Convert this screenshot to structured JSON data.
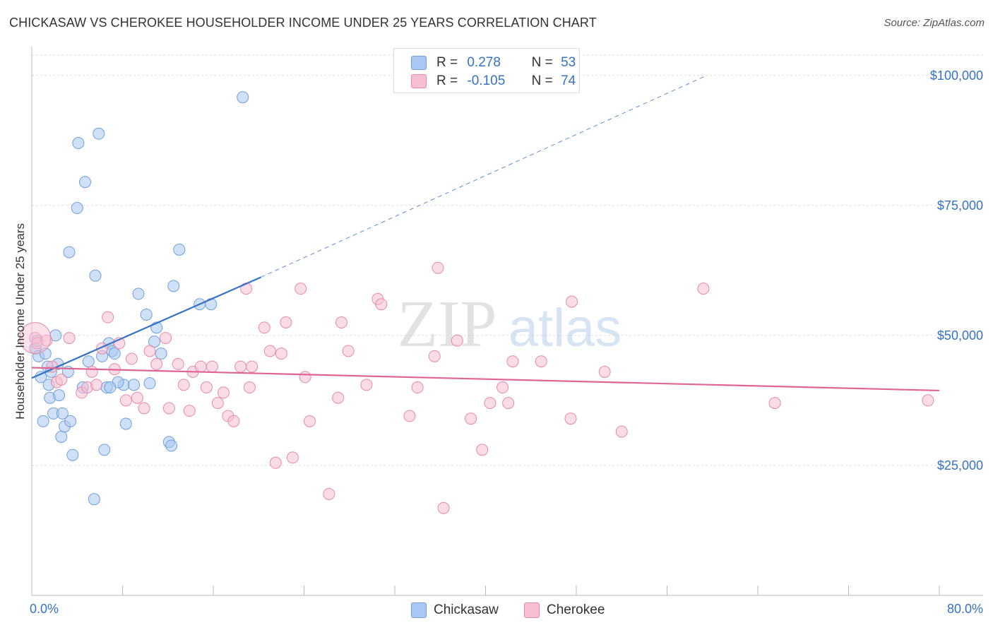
{
  "title": "CHICKASAW VS CHEROKEE HOUSEHOLDER INCOME UNDER 25 YEARS CORRELATION CHART",
  "source": "Source: ZipAtlas.com",
  "watermark": {
    "zip": "ZIP",
    "atlas": "atlas"
  },
  "legend": {
    "rows": [
      {
        "r_label": "R =",
        "r_value": "0.278",
        "n_label": "N =",
        "n_value": "53",
        "color": "#a9c8f0",
        "border": "#6f9fdc"
      },
      {
        "r_label": "R =",
        "r_value": "-0.105",
        "n_label": "N =",
        "n_value": "74",
        "color": "#f6bfd2",
        "border": "#e58aab"
      }
    ]
  },
  "bottom_legend": [
    {
      "label": "Chickasaw",
      "color": "#a9c8f0",
      "border": "#6f9fdc"
    },
    {
      "label": "Cherokee",
      "color": "#f6bfd2",
      "border": "#e58aab"
    }
  ],
  "x_axis": {
    "min_label": "0.0%",
    "max_label": "80.0%"
  },
  "chart_data": {
    "type": "scatter",
    "title": "CHICKASAW VS CHEROKEE HOUSEHOLDER INCOME UNDER 25 YEARS CORRELATION CHART",
    "xlabel": "",
    "ylabel": "Householder Income Under 25 years",
    "xlim": [
      0,
      80
    ],
    "ylim": [
      0,
      105000
    ],
    "y_ticks": [
      {
        "value": 25000,
        "label": "$25,000"
      },
      {
        "value": 50000,
        "label": "$50,000"
      },
      {
        "value": 75000,
        "label": "$75,000"
      },
      {
        "value": 100000,
        "label": "$100,000"
      }
    ],
    "grid": true,
    "series": [
      {
        "name": "Chickasaw",
        "color": "#6f9fdc",
        "fill": "#a9c8f0",
        "trend": {
          "x": [
            0,
            20.2
          ],
          "y": [
            41800,
            61200
          ],
          "dashed_to": [
            59.5,
            100000
          ],
          "color": "#3572c6"
        },
        "points": [
          [
            0.3,
            47500
          ],
          [
            0.6,
            46000
          ],
          [
            0.8,
            42000
          ],
          [
            1.2,
            46500
          ],
          [
            1.4,
            44000
          ],
          [
            1.6,
            38000
          ],
          [
            1.7,
            43000
          ],
          [
            1.9,
            35000
          ],
          [
            2.1,
            50000
          ],
          [
            2.3,
            44500
          ],
          [
            2.6,
            30500
          ],
          [
            2.7,
            35000
          ],
          [
            2.9,
            32500
          ],
          [
            3.2,
            43000
          ],
          [
            3.4,
            33500
          ],
          [
            3.6,
            27000
          ],
          [
            3.3,
            66000
          ],
          [
            4.1,
            87000
          ],
          [
            4.0,
            74500
          ],
          [
            4.5,
            40000
          ],
          [
            4.7,
            79500
          ],
          [
            5.0,
            45000
          ],
          [
            5.6,
            61500
          ],
          [
            5.9,
            88800
          ],
          [
            6.2,
            46000
          ],
          [
            6.4,
            28000
          ],
          [
            6.6,
            40000
          ],
          [
            6.8,
            48500
          ],
          [
            7.1,
            47000
          ],
          [
            7.3,
            46500
          ],
          [
            8.1,
            40500
          ],
          [
            8.3,
            33000
          ],
          [
            9.0,
            40500
          ],
          [
            9.4,
            58000
          ],
          [
            10.1,
            54000
          ],
          [
            10.8,
            48800
          ],
          [
            11.0,
            51500
          ],
          [
            11.4,
            46500
          ],
          [
            12.1,
            29500
          ],
          [
            12.3,
            28800
          ],
          [
            12.5,
            59500
          ],
          [
            13.0,
            66500
          ],
          [
            14.8,
            56000
          ],
          [
            15.8,
            56000
          ],
          [
            18.6,
            95800
          ],
          [
            5.5,
            18500
          ],
          [
            1.0,
            33500
          ],
          [
            2.4,
            38500
          ],
          [
            7.6,
            41000
          ],
          [
            0.5,
            49000
          ],
          [
            1.5,
            40500
          ],
          [
            6.9,
            40000
          ],
          [
            10.4,
            40800
          ]
        ]
      },
      {
        "name": "Cherokee",
        "color": "#e58aab",
        "fill": "#f6bfd2",
        "trend": {
          "x": [
            0,
            80
          ],
          "y": [
            43800,
            39400
          ],
          "color": "#e06593"
        },
        "points": [
          [
            0.3,
            49500
          ],
          [
            0.5,
            48500
          ],
          [
            1.3,
            49000
          ],
          [
            1.8,
            44000
          ],
          [
            2.2,
            41000
          ],
          [
            2.6,
            41500
          ],
          [
            3.3,
            49500
          ],
          [
            4.4,
            39000
          ],
          [
            4.9,
            40000
          ],
          [
            5.3,
            43000
          ],
          [
            5.7,
            40500
          ],
          [
            6.2,
            47500
          ],
          [
            6.7,
            53500
          ],
          [
            7.3,
            43500
          ],
          [
            7.7,
            48500
          ],
          [
            8.3,
            37500
          ],
          [
            8.8,
            45500
          ],
          [
            9.3,
            38000
          ],
          [
            9.9,
            36000
          ],
          [
            10.4,
            47000
          ],
          [
            11.0,
            44500
          ],
          [
            11.8,
            49500
          ],
          [
            12.1,
            36000
          ],
          [
            12.9,
            44500
          ],
          [
            13.4,
            40500
          ],
          [
            13.9,
            35500
          ],
          [
            14.2,
            43000
          ],
          [
            14.9,
            44000
          ],
          [
            15.4,
            40000
          ],
          [
            15.9,
            44000
          ],
          [
            16.4,
            37000
          ],
          [
            16.9,
            39000
          ],
          [
            17.3,
            34500
          ],
          [
            17.8,
            33500
          ],
          [
            18.4,
            44000
          ],
          [
            18.9,
            59000
          ],
          [
            19.4,
            44000
          ],
          [
            20.5,
            51500
          ],
          [
            21.0,
            47000
          ],
          [
            21.5,
            25500
          ],
          [
            22.0,
            46500
          ],
          [
            22.4,
            52500
          ],
          [
            23.0,
            26500
          ],
          [
            23.7,
            59000
          ],
          [
            24.1,
            42000
          ],
          [
            24.5,
            33500
          ],
          [
            26.2,
            19500
          ],
          [
            27.0,
            38000
          ],
          [
            27.3,
            52500
          ],
          [
            27.9,
            47000
          ],
          [
            29.5,
            40500
          ],
          [
            30.5,
            57000
          ],
          [
            30.8,
            56000
          ],
          [
            33.3,
            34500
          ],
          [
            35.5,
            46000
          ],
          [
            35.8,
            63000
          ],
          [
            36.3,
            16800
          ],
          [
            37.5,
            49000
          ],
          [
            38.7,
            34000
          ],
          [
            39.7,
            28000
          ],
          [
            40.4,
            37000
          ],
          [
            41.5,
            40000
          ],
          [
            42.0,
            37000
          ],
          [
            42.4,
            45000
          ],
          [
            44.9,
            45000
          ],
          [
            47.5,
            34000
          ],
          [
            47.6,
            56500
          ],
          [
            50.5,
            43000
          ],
          [
            52.0,
            31500
          ],
          [
            59.2,
            59000
          ],
          [
            65.5,
            37000
          ],
          [
            79.0,
            37500
          ],
          [
            34.0,
            40000
          ],
          [
            19.2,
            40000
          ]
        ]
      }
    ]
  }
}
